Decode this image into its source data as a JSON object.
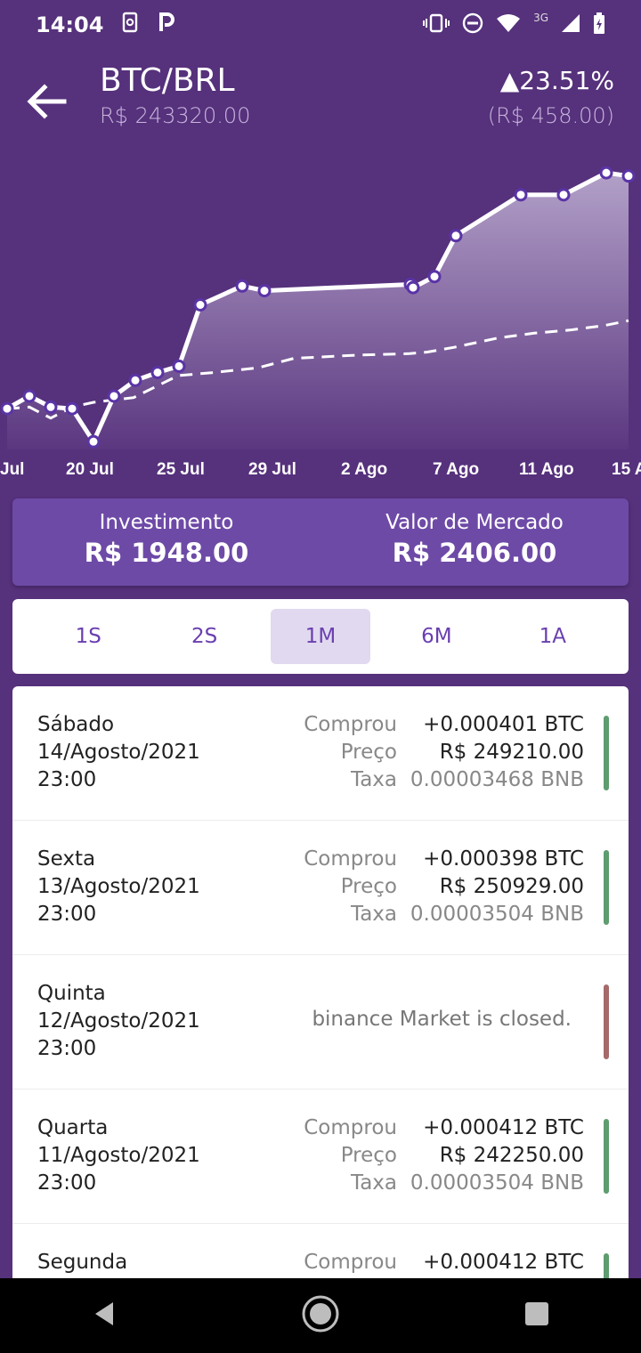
{
  "status_bar": {
    "time": "14:04",
    "network": "3G",
    "icons": [
      "screen-rotation-icon",
      "parking-icon",
      "vibrate-icon",
      "do-not-disturb-icon",
      "wifi-icon",
      "signal-icon",
      "battery-icon"
    ]
  },
  "header": {
    "pair": "BTC/BRL",
    "price": "R$ 243320.00",
    "change_pct": "▲23.51%",
    "change_abs": "(R$ 458.00)"
  },
  "chart_data": {
    "type": "line",
    "x_tick_labels": [
      "Jul",
      "20 Jul",
      "25 Jul",
      "29 Jul",
      "2 Ago",
      "7 Ago",
      "11 Ago",
      "15 A"
    ],
    "series": [
      {
        "values": [
          2170,
          2210,
          2175,
          2170,
          2065,
          2210,
          2260,
          2285,
          2305,
          2500,
          2560,
          2545,
          2565,
          2555,
          2590,
          2720,
          2850,
          2850,
          2920,
          2910
        ]
      },
      {
        "values": [
          2170,
          2175,
          2140,
          2175,
          2190,
          2205,
          2275,
          2285,
          2300,
          2330,
          2340,
          2345,
          2350,
          2365,
          2395,
          2410,
          2420,
          2435,
          2450
        ]
      }
    ],
    "colors": {
      "line": "#ffffff",
      "marker_fill": "#ffffff",
      "marker_stroke": "#5a34a6"
    }
  },
  "summary": {
    "investment_label": "Investimento",
    "investment_value": "R$ 1948.00",
    "market_label": "Valor de Mercado",
    "market_value": "R$ 2406.00"
  },
  "periods": {
    "items": [
      "1S",
      "2S",
      "1M",
      "6M",
      "1A"
    ],
    "selected": "1M"
  },
  "transactions": [
    {
      "day": "Sábado",
      "date": "14/Agosto/2021",
      "time": "23:00",
      "bought_label": "Comprou",
      "bought_value": "+0.000401 BTC",
      "price_label": "Preço",
      "price_value": "R$ 249210.00",
      "fee_label": "Taxa",
      "fee_value": "0.00003468 BNB",
      "status_color": "#5f9c6f"
    },
    {
      "day": "Sexta",
      "date": "13/Agosto/2021",
      "time": "23:00",
      "bought_label": "Comprou",
      "bought_value": "+0.000398 BTC",
      "price_label": "Preço",
      "price_value": "R$ 250929.00",
      "fee_label": "Taxa",
      "fee_value": "0.00003504 BNB",
      "status_color": "#5f9c6f"
    },
    {
      "day": "Quinta",
      "date": "12/Agosto/2021",
      "time": "23:00",
      "message": "binance Market is closed.",
      "status_color": "#a66a6a"
    },
    {
      "day": "Quarta",
      "date": "11/Agosto/2021",
      "time": "23:00",
      "bought_label": "Comprou",
      "bought_value": "+0.000412 BTC",
      "price_label": "Preço",
      "price_value": "R$ 242250.00",
      "fee_label": "Taxa",
      "fee_value": "0.00003504 BNB",
      "status_color": "#5f9c6f"
    },
    {
      "day": "Segunda",
      "bought_label": "Comprou",
      "bought_value": "+0.000412 BTC",
      "status_color": "#5f9c6f"
    }
  ],
  "colors": {
    "background": "#56317c",
    "summary_card": "#6e4aa7",
    "period_active": "#e1d9ef",
    "period_text": "#6a3fb0",
    "buy_status": "#5f9c6f",
    "closed_status": "#a66a6a"
  }
}
